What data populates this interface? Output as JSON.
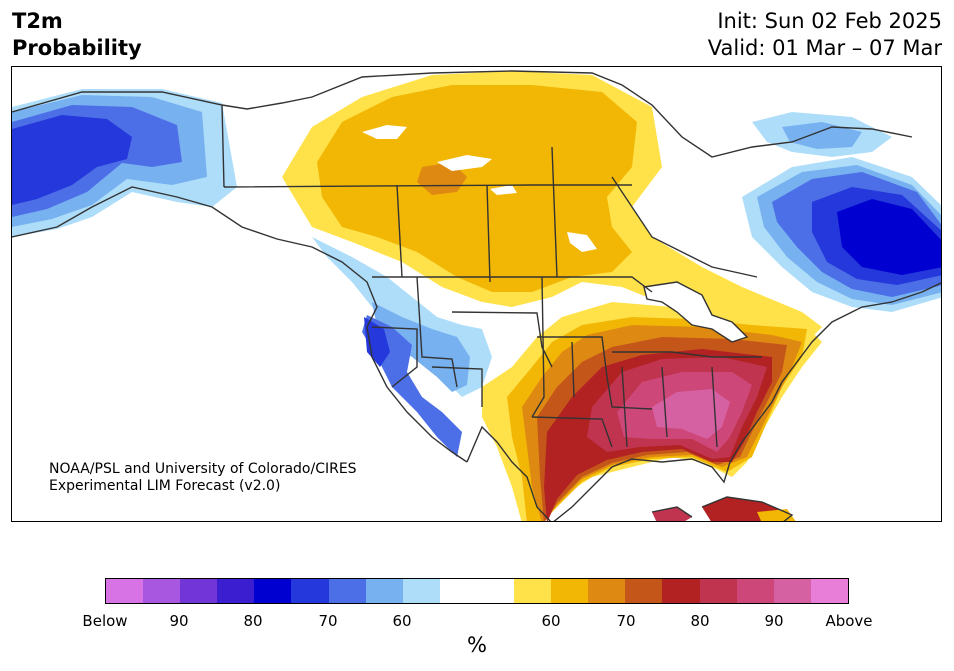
{
  "header": {
    "title_line1": "T2m",
    "title_line2": "Probability",
    "init": "Init: Sun 02 Feb 2025",
    "valid": "Valid: 01 Mar – 07 Mar"
  },
  "credit": {
    "line1": "NOAA/PSL and University of Colorado/CIRES",
    "line2": "Experimental LIM Forecast (v2.0)"
  },
  "colorbar": {
    "segments": [
      "#d873e5",
      "#a857e0",
      "#7236d8",
      "#3a1ed0",
      "#0000d0",
      "#2438db",
      "#4c6ee6",
      "#78b1f0",
      "#aeddfa",
      "#ffffff",
      "#ffffff",
      "#ffe24a",
      "#f2b705",
      "#de8a12",
      "#c5561a",
      "#b22222",
      "#c0344f",
      "#cd4878",
      "#d661a2",
      "#e97ed8"
    ],
    "labels": [
      "Below",
      "90",
      "80",
      "70",
      "60",
      "60",
      "70",
      "80",
      "90",
      "Above"
    ],
    "unit": "%"
  },
  "map": {
    "colors": {
      "ocean": "#ffffff",
      "land": "#ffffff",
      "border": "#333333"
    }
  }
}
